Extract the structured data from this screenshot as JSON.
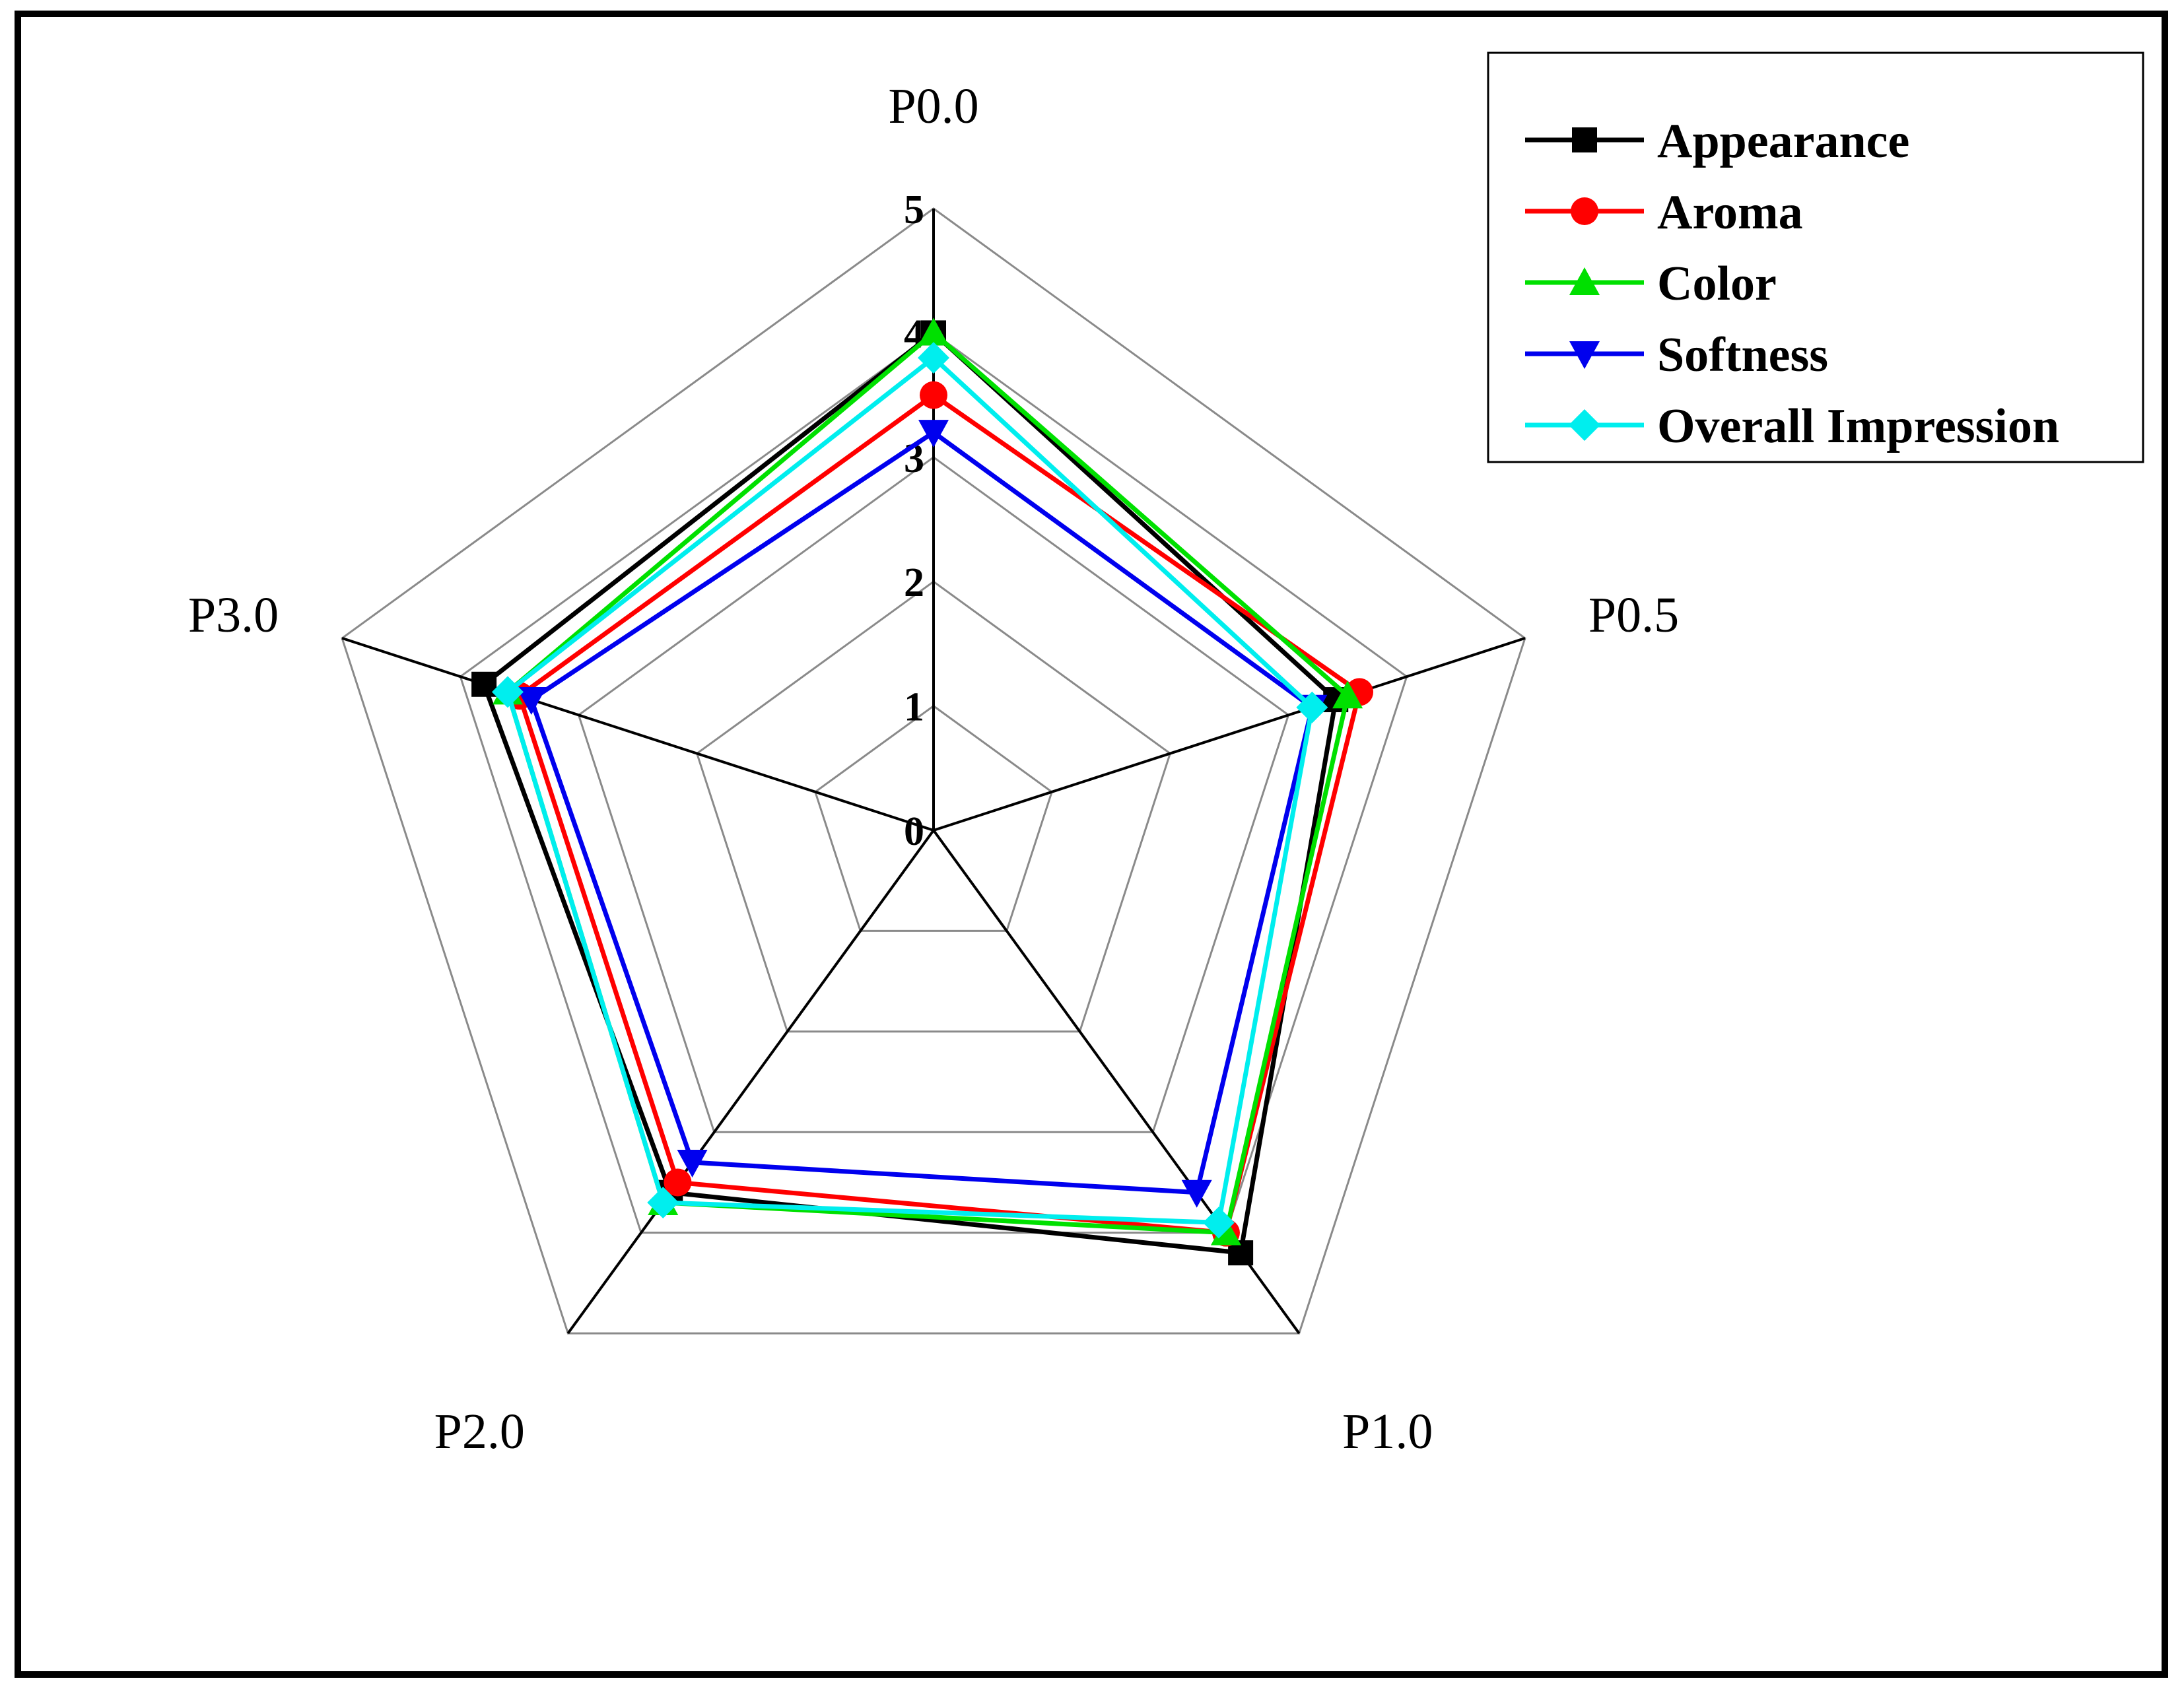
{
  "chart_data": {
    "type": "radar",
    "title": "",
    "categories": [
      "P0.0",
      "P0.5",
      "P1.0",
      "P2.0",
      "P3.0"
    ],
    "rlim": [
      0,
      5
    ],
    "rticks": [
      "0",
      "1",
      "2",
      "3",
      "4",
      "5"
    ],
    "legend_position": "top-right",
    "series": [
      {
        "name": "Appearance",
        "color": "#000000",
        "marker": "square",
        "values": [
          4.0,
          3.4,
          4.2,
          3.6,
          3.8
        ]
      },
      {
        "name": "Aroma",
        "color": "#ff0000",
        "marker": "circle",
        "values": [
          3.5,
          3.6,
          4.0,
          3.5,
          3.5
        ]
      },
      {
        "name": "Color",
        "color": "#00e000",
        "marker": "triangle-up",
        "values": [
          4.0,
          3.5,
          4.0,
          3.7,
          3.6
        ]
      },
      {
        "name": "Softness",
        "color": "#0000ee",
        "marker": "triangle-down",
        "values": [
          3.2,
          3.2,
          3.6,
          3.3,
          3.4
        ]
      },
      {
        "name": "Overall Impression",
        "color": "#00eeee",
        "marker": "diamond",
        "values": [
          3.8,
          3.2,
          3.9,
          3.7,
          3.6
        ]
      }
    ]
  }
}
